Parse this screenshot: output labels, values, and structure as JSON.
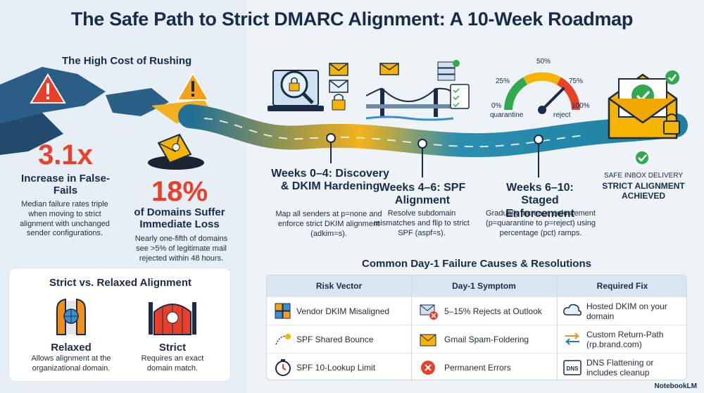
{
  "title": "The Safe Path to Strict DMARC Alignment: A 10-Week Roadmap",
  "cost": {
    "heading": "The High Cost of Rushing",
    "stat1": {
      "value": "3.1x",
      "label": "Increase in False-Fails",
      "desc": "Median failure rates triple when moving to strict alignment with unchanged sender configurations."
    },
    "stat2": {
      "value": "18%",
      "label": "of Domains Suffer Immediate Loss",
      "desc": "Nearly one-fifth of domains see >5% of legitimate mail rejected within 48 hours."
    }
  },
  "alignment": {
    "heading": "Strict vs. Relaxed Alignment",
    "relaxed": {
      "label": "Relaxed",
      "desc": "Allows alignment at the organizational domain."
    },
    "strict": {
      "label": "Strict",
      "desc": "Requires an exact domain match."
    }
  },
  "phases": [
    {
      "heading": "Weeks 0–4: Discovery & DKIM Hardening",
      "desc": "Map all senders at p=none and enforce strict DKIM alignment (adkim=s)."
    },
    {
      "heading": "Weeks 4–6: SPF Alignment",
      "desc": "Resolve subdomain mismatches and flip to strict SPF (aspf=s)."
    },
    {
      "heading": "Weeks 6–10: Staged Enforcement",
      "desc": "Gradually increase enforcement (p=quarantine to p=reject) using percentage (pct) ramps."
    }
  ],
  "gauge": {
    "t0": "0%",
    "t25": "25%",
    "t50": "50%",
    "t75": "75%",
    "t100": "100%",
    "left": "quarantine",
    "right": "reject"
  },
  "goal": {
    "line1": "SAFE INBOX DELIVERY",
    "line2": "STRICT ALIGNMENT ACHIEVED"
  },
  "table": {
    "title": "Common Day-1 Failure Causes & Resolutions",
    "headers": [
      "Risk Vector",
      "Day-1 Symptom",
      "Required Fix"
    ],
    "rows": [
      {
        "risk": "Vendor DKIM Misaligned",
        "symptom": "5–15% Rejects at Outlook",
        "fix": "Hosted DKIM on your domain"
      },
      {
        "risk": "SPF Shared Bounce",
        "symptom": "Gmail Spam-Foldering",
        "fix": "Custom Return-Path (rp.brand.com)"
      },
      {
        "risk": "SPF 10-Lookup Limit",
        "symptom": "Permanent Errors",
        "fix": "DNS Flattening or includes cleanup"
      }
    ],
    "dns_icon_text": "DNS"
  },
  "brand": "NotebookLM",
  "colors": {
    "red": "#e8402a",
    "navy": "#1a2b4a",
    "teal": "#1f7fa0",
    "yellow": "#f5b400",
    "green": "#2fa84f"
  }
}
